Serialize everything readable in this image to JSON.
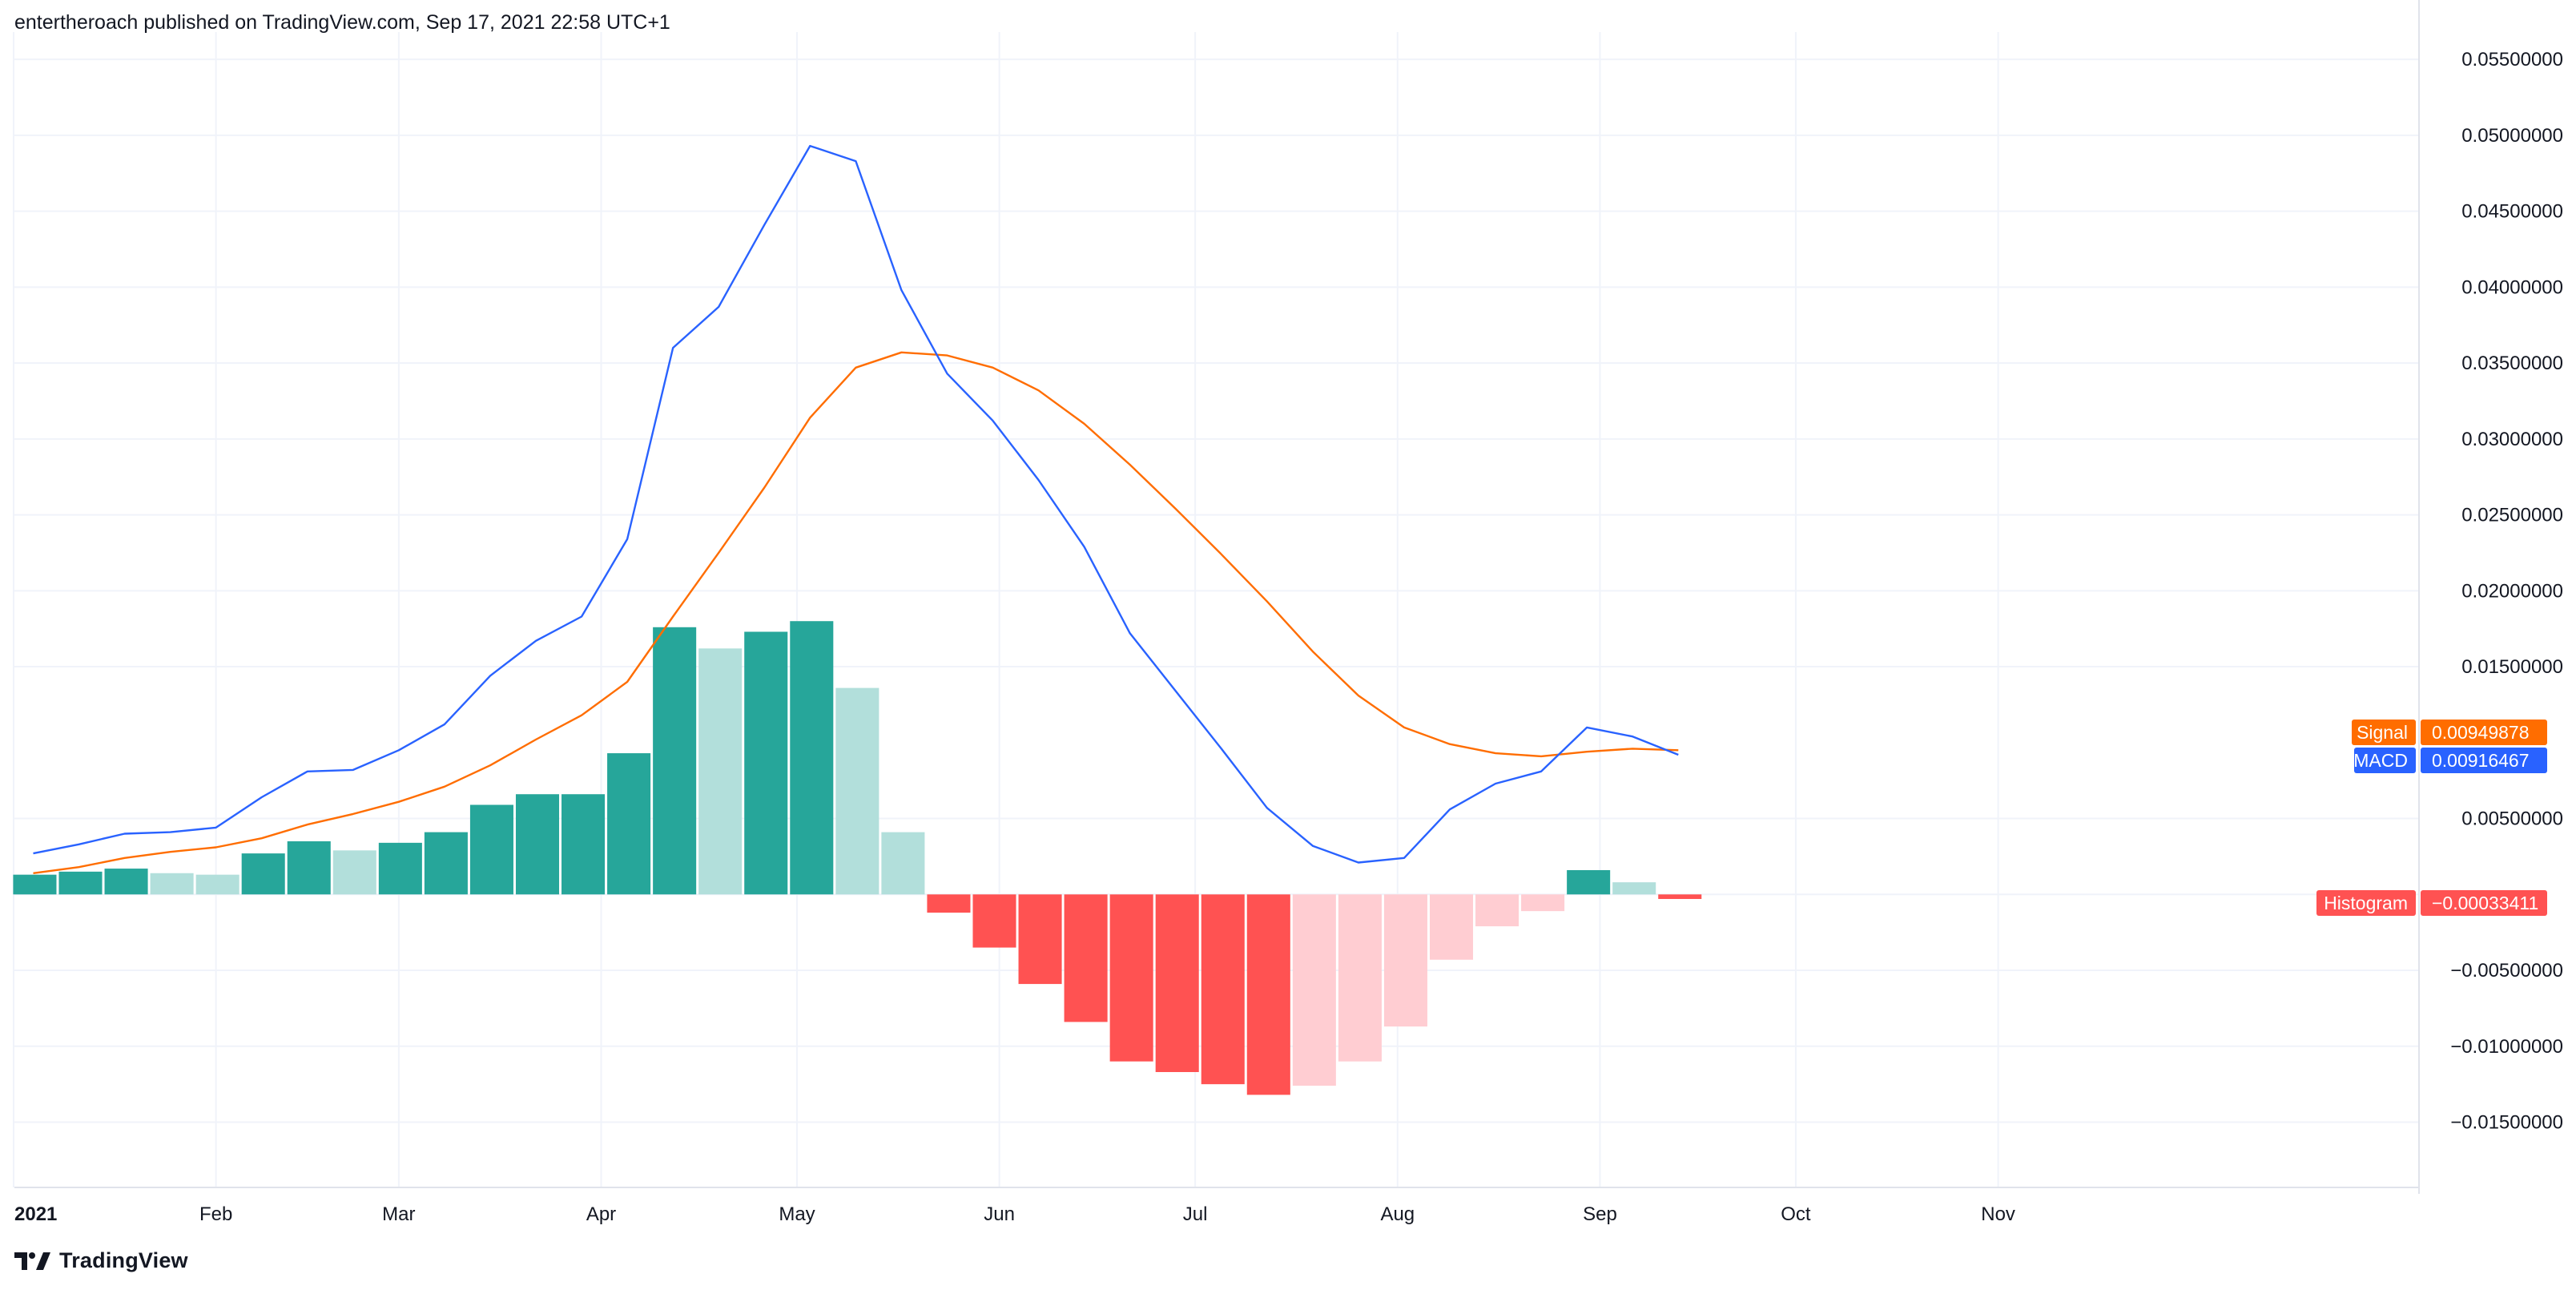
{
  "header": {
    "publisher_text": "entertheroach published on TradingView.com, Sep 17, 2021 22:58 UTC+1"
  },
  "footer": {
    "logo_text": "TradingView",
    "logo_icon": "tradingview-logo-icon"
  },
  "colors": {
    "macd_line": "#2962FF",
    "signal_line": "#FF6D00",
    "hist_pos_strong": "#26A69A",
    "hist_pos_weak": "#B2DFDB",
    "hist_neg_strong": "#FF5252",
    "hist_neg_weak": "#FFCDD2",
    "grid": "#F0F3FA",
    "axis_text": "#131722"
  },
  "chart_data": {
    "type": "line",
    "title": "",
    "x_tick_labels": [
      "2021",
      "Feb",
      "Mar",
      "Apr",
      "May",
      "Jun",
      "Jul",
      "Aug",
      "Sep",
      "Oct",
      "Nov"
    ],
    "y_tick_labels": [
      "0.05500000",
      "0.05000000",
      "0.04500000",
      "0.04000000",
      "0.03500000",
      "0.03000000",
      "0.02500000",
      "0.02000000",
      "0.01500000",
      "0.00500000",
      "−0.00500000",
      "−0.01000000",
      "−0.01500000"
    ],
    "y_tick_values": [
      0.055,
      0.05,
      0.045,
      0.04,
      0.035,
      0.03,
      0.025,
      0.02,
      0.015,
      0.005,
      -0.005,
      -0.01,
      -0.015
    ],
    "ylim": [
      -0.0193,
      0.0568
    ],
    "x": [
      "2021-01-04",
      "2021-01-11",
      "2021-01-18",
      "2021-01-25",
      "2021-02-01",
      "2021-02-08",
      "2021-02-15",
      "2021-02-22",
      "2021-03-01",
      "2021-03-08",
      "2021-03-15",
      "2021-03-22",
      "2021-03-29",
      "2021-04-05",
      "2021-04-12",
      "2021-04-19",
      "2021-04-26",
      "2021-05-03",
      "2021-05-10",
      "2021-05-17",
      "2021-05-24",
      "2021-05-31",
      "2021-06-07",
      "2021-06-14",
      "2021-06-21",
      "2021-06-28",
      "2021-07-05",
      "2021-07-12",
      "2021-07-19",
      "2021-07-26",
      "2021-08-02",
      "2021-08-09",
      "2021-08-16",
      "2021-08-23",
      "2021-08-30",
      "2021-09-06",
      "2021-09-13"
    ],
    "grid": true,
    "legend": "right-axis-badges",
    "series": [
      {
        "name": "MACD",
        "type": "line",
        "color": "#2962FF",
        "values": [
          0.0027,
          0.0033,
          0.004,
          0.0041,
          0.0044,
          0.0064,
          0.0081,
          0.0082,
          0.0095,
          0.0112,
          0.0144,
          0.0167,
          0.0183,
          0.0234,
          0.036,
          0.0387,
          0.0441,
          0.0493,
          0.0483,
          0.0398,
          0.0343,
          0.0312,
          0.0273,
          0.0229,
          0.0172,
          0.0134,
          0.0096,
          0.0057,
          0.0032,
          0.0021,
          0.0024,
          0.0056,
          0.0073,
          0.0081,
          0.011,
          0.0104,
          0.0092
        ]
      },
      {
        "name": "Signal",
        "type": "line",
        "color": "#FF6D00",
        "values": [
          0.0014,
          0.0018,
          0.0024,
          0.0028,
          0.0031,
          0.0037,
          0.0046,
          0.0053,
          0.0061,
          0.0071,
          0.0085,
          0.0102,
          0.0118,
          0.014,
          0.0183,
          0.0225,
          0.0268,
          0.0314,
          0.0347,
          0.0357,
          0.0355,
          0.0347,
          0.0332,
          0.031,
          0.0283,
          0.0254,
          0.0224,
          0.0193,
          0.016,
          0.0131,
          0.011,
          0.0099,
          0.0093,
          0.0091,
          0.0094,
          0.0096,
          0.0095
        ]
      },
      {
        "name": "Histogram",
        "type": "bar",
        "values": [
          0.0013,
          0.0015,
          0.0017,
          0.0014,
          0.0013,
          0.0027,
          0.0035,
          0.0029,
          0.0034,
          0.0041,
          0.0059,
          0.0066,
          0.0066,
          0.0093,
          0.0176,
          0.0162,
          0.0173,
          0.018,
          0.0136,
          0.0041,
          -0.0012,
          -0.0035,
          -0.0059,
          -0.0084,
          -0.011,
          -0.0117,
          -0.0125,
          -0.0132,
          -0.0126,
          -0.011,
          -0.0087,
          -0.0043,
          -0.0021,
          -0.0011,
          0.0016,
          0.0008,
          -0.0003
        ],
        "shades": [
          "strong",
          "strong",
          "strong",
          "weak",
          "weak",
          "strong",
          "strong",
          "weak",
          "strong",
          "strong",
          "strong",
          "strong",
          "strong",
          "strong",
          "strong",
          "weak",
          "strong",
          "strong",
          "weak",
          "weak",
          "strong",
          "strong",
          "strong",
          "strong",
          "strong",
          "strong",
          "strong",
          "strong",
          "weak",
          "weak",
          "weak",
          "weak",
          "weak",
          "weak",
          "strong",
          "weak",
          "strong"
        ]
      }
    ],
    "axis_badges": [
      {
        "label": "Signal",
        "value": "0.00949878",
        "color": "#FF6D00"
      },
      {
        "label": "MACD",
        "value": "0.00916467",
        "color": "#2962FF"
      },
      {
        "label": "Histogram",
        "value": "−0.00033411",
        "color": "#FF5252"
      }
    ]
  }
}
